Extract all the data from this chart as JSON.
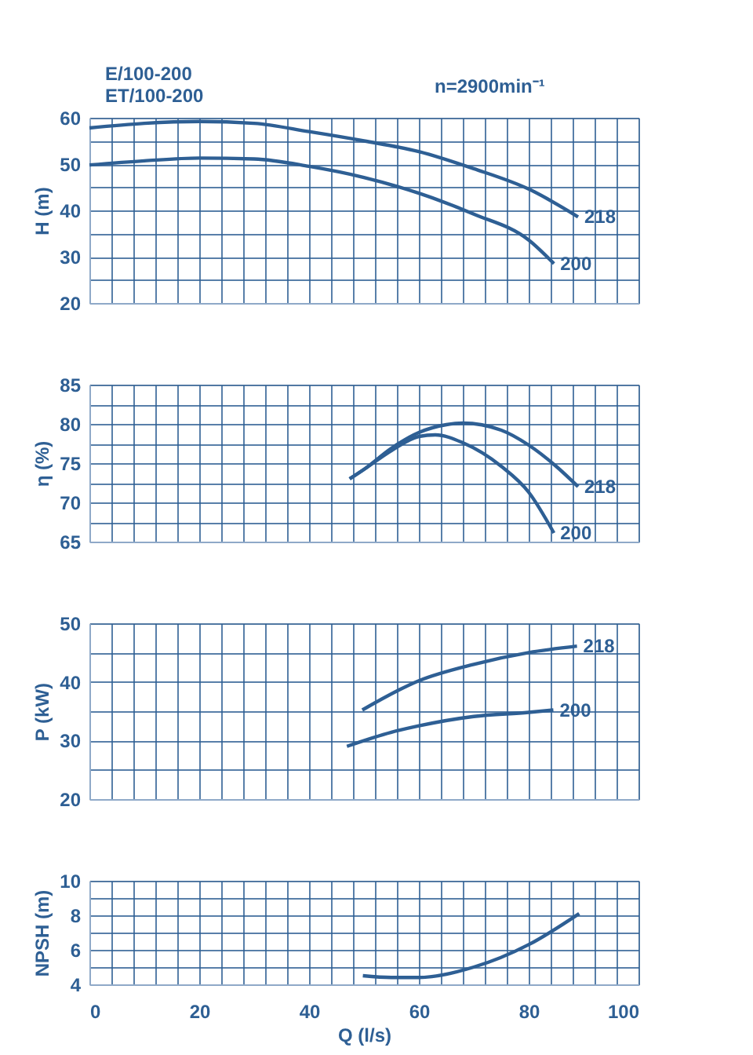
{
  "chart_data": [
    {
      "type": "line",
      "annotations": [
        "E/100-200",
        "ET/100-200",
        "n=2900min⁻¹"
      ],
      "ylabel": "H (m)",
      "tick_labels": "y",
      "grid": true,
      "marker": "none",
      "line_style": "solid",
      "xlim": [
        0,
        100
      ],
      "xticks": [
        0,
        {
          "value": 4,
          "label": null
        },
        {
          "value": 8,
          "label": null
        },
        {
          "value": 12,
          "label": null
        },
        {
          "value": 16,
          "label": null
        },
        20,
        {
          "value": 24,
          "label": null
        },
        {
          "value": 28,
          "label": null
        },
        {
          "value": 32,
          "label": null
        },
        {
          "value": 36,
          "label": null
        },
        40,
        {
          "value": 44,
          "label": null
        },
        {
          "value": 48,
          "label": null
        },
        {
          "value": 52,
          "label": null
        },
        {
          "value": 56,
          "label": null
        },
        60,
        {
          "value": 64,
          "label": null
        },
        {
          "value": 68,
          "label": null
        },
        {
          "value": 72,
          "label": null
        },
        {
          "value": 76,
          "label": null
        },
        80,
        {
          "value": 84,
          "label": null
        },
        {
          "value": 88,
          "label": null
        },
        {
          "value": 92,
          "label": null
        },
        {
          "value": 96,
          "label": null
        },
        100
      ],
      "ylim": [
        20,
        60
      ],
      "yticks": [
        20,
        {
          "value": 25,
          "label": null
        },
        30,
        {
          "value": 35,
          "label": null
        },
        40,
        {
          "value": 45,
          "label": null
        },
        50,
        {
          "value": 55,
          "label": null
        },
        60
      ],
      "series": [
        {
          "name": "218",
          "color": "#2e5f94",
          "x": [
            0,
            10,
            20,
            30,
            40,
            50,
            60,
            70,
            80,
            89
          ],
          "values": [
            57.8,
            58.8,
            59.2,
            58.8,
            57,
            55,
            52.7,
            49,
            44.6,
            38.6
          ]
        },
        {
          "name": "200",
          "color": "#2e5f94",
          "x": [
            0,
            10,
            20,
            30,
            40,
            50,
            60,
            70,
            80,
            84.6
          ],
          "values": [
            49.8,
            50.7,
            51.3,
            51.1,
            49.5,
            47.1,
            43.7,
            39.2,
            33.6,
            28.5
          ]
        }
      ]
    },
    {
      "type": "line",
      "ylabel": "η (%)",
      "tick_labels": "y",
      "grid": true,
      "marker": "none",
      "line_style": "solid",
      "xlim": [
        0,
        100
      ],
      "xticks": [
        0,
        {
          "value": 4,
          "label": null
        },
        {
          "value": 8,
          "label": null
        },
        {
          "value": 12,
          "label": null
        },
        {
          "value": 16,
          "label": null
        },
        20,
        {
          "value": 24,
          "label": null
        },
        {
          "value": 28,
          "label": null
        },
        {
          "value": 32,
          "label": null
        },
        {
          "value": 36,
          "label": null
        },
        40,
        {
          "value": 44,
          "label": null
        },
        {
          "value": 48,
          "label": null
        },
        {
          "value": 52,
          "label": null
        },
        {
          "value": 56,
          "label": null
        },
        60,
        {
          "value": 64,
          "label": null
        },
        {
          "value": 68,
          "label": null
        },
        {
          "value": 72,
          "label": null
        },
        {
          "value": 76,
          "label": null
        },
        80,
        {
          "value": 84,
          "label": null
        },
        {
          "value": 88,
          "label": null
        },
        {
          "value": 92,
          "label": null
        },
        {
          "value": 96,
          "label": null
        },
        100
      ],
      "ylim": [
        65,
        85
      ],
      "yticks": [
        65,
        {
          "value": 67.5,
          "label": null
        },
        70,
        {
          "value": 72.5,
          "label": null
        },
        75,
        {
          "value": 77.5,
          "label": null
        },
        80,
        {
          "value": 82.5,
          "label": null
        },
        85
      ],
      "series": [
        {
          "name": "218",
          "color": "#2e5f94",
          "x": [
            47.4,
            50,
            55,
            60,
            65,
            68,
            75,
            80,
            85,
            89
          ],
          "values": [
            73,
            74.2,
            76.9,
            78.9,
            79.9,
            80.1,
            79.2,
            77.3,
            74.6,
            72
          ]
        },
        {
          "name": "200",
          "color": "#2e5f94",
          "x": [
            47.4,
            50,
            55,
            60,
            63,
            68,
            75,
            80,
            84.6
          ],
          "values": [
            73,
            74.2,
            76.6,
            78.4,
            78.6,
            77.6,
            74.6,
            71.3,
            66.1
          ]
        }
      ]
    },
    {
      "type": "line",
      "ylabel": "P (kW)",
      "tick_labels": "y",
      "grid": true,
      "marker": "none",
      "line_style": "solid",
      "xlim": [
        0,
        100
      ],
      "xticks": [
        0,
        {
          "value": 4,
          "label": null
        },
        {
          "value": 8,
          "label": null
        },
        {
          "value": 12,
          "label": null
        },
        {
          "value": 16,
          "label": null
        },
        20,
        {
          "value": 24,
          "label": null
        },
        {
          "value": 28,
          "label": null
        },
        {
          "value": 32,
          "label": null
        },
        {
          "value": 36,
          "label": null
        },
        40,
        {
          "value": 44,
          "label": null
        },
        {
          "value": 48,
          "label": null
        },
        {
          "value": 52,
          "label": null
        },
        {
          "value": 56,
          "label": null
        },
        60,
        {
          "value": 64,
          "label": null
        },
        {
          "value": 68,
          "label": null
        },
        {
          "value": 72,
          "label": null
        },
        {
          "value": 76,
          "label": null
        },
        80,
        {
          "value": 84,
          "label": null
        },
        {
          "value": 88,
          "label": null
        },
        {
          "value": 92,
          "label": null
        },
        {
          "value": 96,
          "label": null
        },
        100
      ],
      "ylim": [
        20,
        50
      ],
      "yticks": [
        20,
        {
          "value": 25,
          "label": null
        },
        30,
        {
          "value": 35,
          "label": null
        },
        40,
        {
          "value": 45,
          "label": null
        },
        50
      ],
      "series": [
        {
          "name": "218",
          "color": "#2e5f94",
          "x": [
            49.7,
            60,
            70,
            80,
            88.8
          ],
          "values": [
            35.2,
            40.2,
            43,
            45,
            46.1
          ]
        },
        {
          "name": "200",
          "color": "#2e5f94",
          "x": [
            46.9,
            55,
            60,
            70,
            80,
            84.5
          ],
          "values": [
            29,
            31.4,
            32.5,
            34.1,
            34.8,
            35.2
          ]
        }
      ]
    },
    {
      "type": "line",
      "xlabel": "Q (l/s)",
      "ylabel": "NPSH (m)",
      "grid": true,
      "marker": "none",
      "line_style": "solid",
      "xlim": [
        0,
        100
      ],
      "xticks": [
        0,
        {
          "value": 4,
          "label": null
        },
        {
          "value": 8,
          "label": null
        },
        {
          "value": 12,
          "label": null
        },
        {
          "value": 16,
          "label": null
        },
        20,
        {
          "value": 24,
          "label": null
        },
        {
          "value": 28,
          "label": null
        },
        {
          "value": 32,
          "label": null
        },
        {
          "value": 36,
          "label": null
        },
        40,
        {
          "value": 44,
          "label": null
        },
        {
          "value": 48,
          "label": null
        },
        {
          "value": 52,
          "label": null
        },
        {
          "value": 56,
          "label": null
        },
        60,
        {
          "value": 64,
          "label": null
        },
        {
          "value": 68,
          "label": null
        },
        {
          "value": 72,
          "label": null
        },
        {
          "value": 76,
          "label": null
        },
        80,
        {
          "value": 84,
          "label": null
        },
        {
          "value": 88,
          "label": null
        },
        {
          "value": 92,
          "label": null
        },
        {
          "value": 96,
          "label": null
        },
        100
      ],
      "ylim": [
        4,
        10
      ],
      "yticks": [
        4,
        {
          "value": 5,
          "label": null
        },
        6,
        {
          "value": 7,
          "label": null
        },
        8,
        {
          "value": 9,
          "label": null
        },
        10
      ],
      "series": [
        {
          "color": "#2e5f94",
          "x": [
            49.8,
            55,
            60,
            70,
            80,
            89.2
          ],
          "values": [
            4.5,
            4.4,
            4.4,
            5,
            6.3,
            8.1
          ]
        }
      ]
    }
  ]
}
